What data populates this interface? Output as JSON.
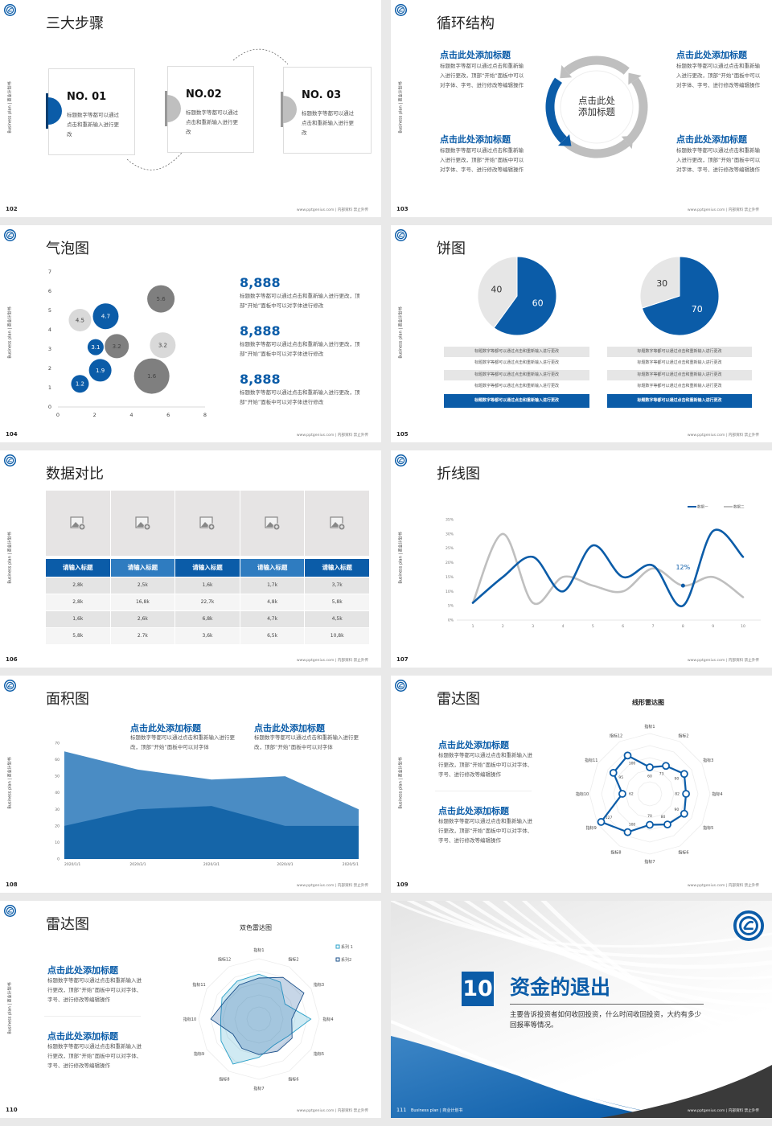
{
  "common": {
    "side_label": "Business plan | 商业计划书",
    "footer": "www.pptgenius.com | 内部资料 禁止外传",
    "brand_color": "#0b5ca8",
    "light_blue": "#4a8cc4",
    "gray": "#bfbfbf",
    "logo_icon": "school-emblem-icon"
  },
  "slides": [
    {
      "page": "102",
      "title": "三大步骤",
      "steps": [
        {
          "no": "NO. 01",
          "text": "标题数字等都可以通过点击和重新输入进行更改"
        },
        {
          "no": "NO.02",
          "text": "标题数字等都可以通过点击和重新输入进行更改"
        },
        {
          "no": "NO. 03",
          "text": "标题数字等都可以通过点击和重新输入进行更改"
        }
      ]
    },
    {
      "page": "103",
      "title": "循环结构",
      "center": "点击此处添加标题",
      "blocks": [
        {
          "heading": "点击此处添加标题",
          "text": "标题数字等都可以通过点击和重新输入进行更改，顶部“开始”面板中可以对字体、字号、进行修改等编辑操作"
        },
        {
          "heading": "点击此处添加标题",
          "text": "标题数字等都可以通过点击和重新输入进行更改，顶部“开始”面板中可以对字体、字号、进行修改等编辑操作"
        },
        {
          "heading": "点击此处添加标题",
          "text": "标题数字等都可以通过点击和重新输入进行更改，顶部“开始”面板中可以对字体、字号、进行修改等编辑操作"
        },
        {
          "heading": "点击此处添加标题",
          "text": "标题数字等都可以通过点击和重新输入进行更改，顶部“开始”面板中可以对字体、字号、进行修改等编辑操作"
        }
      ]
    },
    {
      "page": "104",
      "title": "气泡图",
      "stats": [
        {
          "value": "8,888",
          "text": "标题数字等都可以通过点击和重新输入进行更改，顶部“开始”面板中可以对字体进行修改"
        },
        {
          "value": "8,888",
          "text": "标题数字等都可以通过点击和重新输入进行更改，顶部“开始”面板中可以对字体进行修改"
        },
        {
          "value": "8,888",
          "text": "标题数字等都可以通过点击和重新输入进行更改，顶部“开始”面板中可以对字体进行修改"
        }
      ]
    },
    {
      "page": "105",
      "title": "饼图",
      "lists": [
        [
          "标题数字等都可以通过点击和重新输入进行更改",
          "标题数字等都可以通过点击和重新输入进行更改",
          "标题数字等都可以通过点击和重新输入进行更改",
          "标题数字等都可以通过点击和重新输入进行更改",
          "标题数字等都可以通过点击和重新输入进行更改"
        ],
        [
          "标题数字等都可以通过点击和重新输入进行更改",
          "标题数字等都可以通过点击和重新输入进行更改",
          "标题数字等都可以通过点击和重新输入进行更改",
          "标题数字等都可以通过点击和重新输入进行更改",
          "标题数字等都可以通过点击和重新输入进行更改"
        ]
      ]
    },
    {
      "page": "106",
      "title": "数据对比",
      "image_icon": "image-placeholder-icon"
    },
    {
      "page": "107",
      "title": "折线图"
    },
    {
      "page": "108",
      "title": "面积图",
      "blocks": [
        {
          "heading": "点击此处添加标题",
          "text": "标题数字等都可以通过点击和重新输入进行更改，顶部“开始”面板中可以对字体"
        },
        {
          "heading": "点击此处添加标题",
          "text": "标题数字等都可以通过点击和重新输入进行更改，顶部“开始”面板中可以对字体"
        }
      ]
    },
    {
      "page": "109",
      "title": "雷达图",
      "blocks": [
        {
          "heading": "点击此处添加标题",
          "text": "标题数字等都可以通过点击和重新输入进行更改，顶部“开始”面板中可以对字体、字号、进行修改等编辑操作"
        },
        {
          "heading": "点击此处添加标题",
          "text": "标题数字等都可以通过点击和重新输入进行更改，顶部“开始”面板中可以对字体、字号、进行修改等编辑操作"
        }
      ]
    },
    {
      "page": "110",
      "title": "雷达图",
      "blocks": [
        {
          "heading": "点击此处添加标题",
          "text": "标题数字等都可以通过点击和重新输入进行更改，顶部“开始”面板中可以对字体、字号、进行修改等编辑操作"
        },
        {
          "heading": "点击此处添加标题",
          "text": "标题数字等都可以通过点击和重新输入进行更改，顶部“开始”面板中可以对字体、字号、进行修改等编辑操作"
        }
      ]
    },
    {
      "page": "111",
      "number": "10",
      "title": "资金的退出",
      "description": "主要告诉投资者如何收回投资，什么时间收回投资，大约有多少回报率等情况。",
      "footer_left": "Business plan | 商业计划书"
    }
  ],
  "chart_data": [
    {
      "type": "scatter",
      "subtype": "bubble",
      "xlim": [
        0,
        8
      ],
      "ylim": [
        0,
        7
      ],
      "xticks": [
        0,
        2,
        4,
        6,
        8
      ],
      "yticks": [
        0,
        1,
        2,
        3,
        4,
        5,
        6,
        7
      ],
      "points": [
        {
          "x": 1.2,
          "y": 1.2,
          "size": 11,
          "label": "1.2",
          "color": "#0b5ca8"
        },
        {
          "x": 2.3,
          "y": 1.9,
          "size": 14,
          "label": "1.9",
          "color": "#0b5ca8"
        },
        {
          "x": 2.05,
          "y": 3.1,
          "size": 10,
          "label": "3.1",
          "color": "#0b5ca8"
        },
        {
          "x": 3.2,
          "y": 3.15,
          "size": 15,
          "label": "3.2",
          "color": "#7f7f7f"
        },
        {
          "x": 1.2,
          "y": 4.5,
          "size": 14,
          "label": "4.5",
          "color": "#d9d9d9"
        },
        {
          "x": 2.6,
          "y": 4.7,
          "size": 16,
          "label": "4.7",
          "color": "#0b5ca8"
        },
        {
          "x": 5.6,
          "y": 5.6,
          "size": 17,
          "label": "5.6",
          "color": "#7f7f7f"
        },
        {
          "x": 5.7,
          "y": 3.2,
          "size": 16,
          "label": "3.2",
          "color": "#d9d9d9"
        },
        {
          "x": 5.1,
          "y": 1.6,
          "size": 22,
          "label": "1.6",
          "color": "#7f7f7f"
        }
      ]
    },
    {
      "type": "pie",
      "values": [
        60,
        40
      ],
      "labels": [
        "60",
        "40"
      ],
      "colors": [
        "#0b5ca8",
        "#e6e6e6"
      ]
    },
    {
      "type": "pie",
      "values": [
        70,
        30
      ],
      "labels": [
        "70",
        "30"
      ],
      "colors": [
        "#0b5ca8",
        "#e6e6e6"
      ]
    },
    {
      "type": "table",
      "headers": [
        "请输入标题",
        "请输入标题",
        "请输入标题",
        "请输入标题",
        "请输入标题"
      ],
      "rows": [
        [
          "2,8k",
          "2,5k",
          "1,6k",
          "1,7k",
          "3,7k"
        ],
        [
          "2,8k",
          "16,8k",
          "22,7k",
          "4,8k",
          "5,8k"
        ],
        [
          "1,6k",
          "2,6k",
          "6,8k",
          "4,7k",
          "4,5k"
        ],
        [
          "5,8k",
          "2.7k",
          "3,6k",
          "6,5k",
          "10,8k"
        ]
      ]
    },
    {
      "type": "line",
      "x": [
        "1",
        "2",
        "3",
        "4",
        "5",
        "6",
        "7",
        "8",
        "9",
        "10"
      ],
      "yticks": [
        "0%",
        "5%",
        "10%",
        "15%",
        "20%",
        "25%",
        "30%",
        "35%"
      ],
      "ylim": [
        0,
        35
      ],
      "series": [
        {
          "name": "数据一",
          "values": [
            6,
            15,
            22,
            10,
            26,
            15,
            19,
            5,
            31,
            22
          ],
          "color": "#0b5ca8"
        },
        {
          "name": "数据二",
          "values": [
            6,
            30,
            6,
            15,
            12,
            10,
            18,
            12,
            15,
            8
          ],
          "color": "#bfbfbf"
        }
      ],
      "annotation": {
        "x": "8",
        "value": 12,
        "label": "12%"
      },
      "legend": "top-right"
    },
    {
      "type": "area",
      "x": [
        "2020/1/1",
        "2020/2/1",
        "2020/3/1",
        "2020/4/1",
        "2020/5/1"
      ],
      "yticks": [
        "0",
        "10",
        "20",
        "30",
        "40",
        "50",
        "60",
        "70"
      ],
      "ylim": [
        0,
        70
      ],
      "series": [
        {
          "values": [
            65,
            54,
            48,
            50,
            30
          ],
          "color": "#4a8cc4"
        },
        {
          "values": [
            20,
            30,
            32,
            20,
            20
          ],
          "color": "#1565a8"
        }
      ]
    },
    {
      "type": "radar",
      "title": "线形雷达图",
      "axes": [
        "指标1",
        "指标2",
        "指标3",
        "指标4",
        "指标5",
        "指标6",
        "指标7",
        "指标8",
        "指标9",
        "指标10",
        "指标11",
        "指标12"
      ],
      "values": [
        60,
        73,
        90,
        82,
        90,
        80,
        70,
        100,
        127,
        62,
        95,
        100
      ],
      "value_labels": [
        "60",
        "73",
        "90",
        "82",
        "90",
        "80",
        "70",
        "100",
        "127",
        "62",
        "95",
        "100"
      ],
      "color": "#0b5ca8"
    },
    {
      "type": "radar",
      "title": "双色雷达图",
      "axes": [
        "指标1",
        "指标2",
        "指标3",
        "指标4",
        "指标5",
        "指标6",
        "指标7",
        "指标8",
        "指标9",
        "指标10",
        "指标11",
        "指标12"
      ],
      "series": [
        {
          "name": "系列 1",
          "values": [
            82,
            78,
            55,
            95,
            62,
            55,
            70,
            95,
            80,
            70,
            78,
            80
          ],
          "color": "#2aa0c8"
        },
        {
          "name": "系列2",
          "values": [
            75,
            88,
            95,
            60,
            70,
            68,
            65,
            62,
            55,
            88,
            70,
            72
          ],
          "color": "#1a4f8a"
        }
      ],
      "legend": "top-right"
    }
  ]
}
